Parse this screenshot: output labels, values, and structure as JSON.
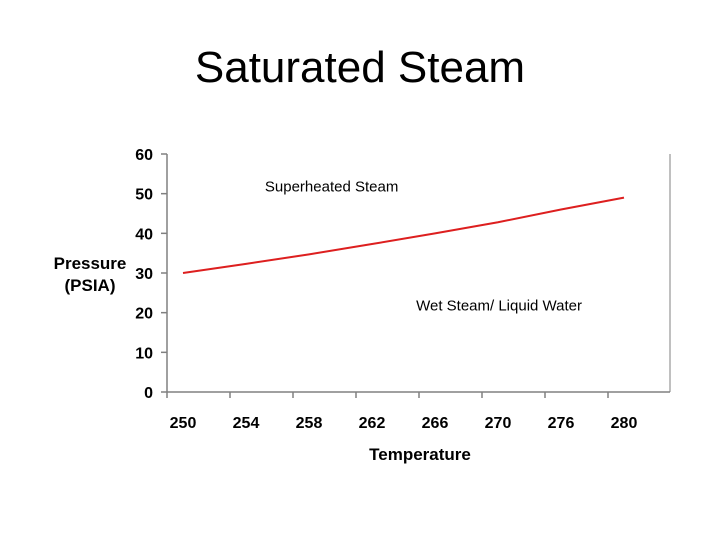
{
  "chart_data": {
    "type": "line",
    "title": "Saturated Steam",
    "xlabel": "Temperature",
    "ylabel": [
      "Pressure",
      "(PSIA)"
    ],
    "categories": [
      "250",
      "254",
      "258",
      "262",
      "266",
      "270",
      "276",
      "280"
    ],
    "ylim": [
      0,
      60
    ],
    "yticks": [
      0,
      10,
      20,
      30,
      40,
      50,
      60
    ],
    "grid": false,
    "series": [
      {
        "values": [
          30.0,
          32.3,
          34.7,
          37.3,
          40.0,
          42.8,
          46.0,
          49.0
        ],
        "color": "#dd1f1f"
      }
    ],
    "annotations": [
      {
        "text": "Superheated Steam",
        "x": 1.3,
        "y": 50.5
      },
      {
        "text": "Wet Steam/ Liquid Water",
        "x": 3.7,
        "y": 20.5
      }
    ],
    "axis_color": "#808080"
  }
}
